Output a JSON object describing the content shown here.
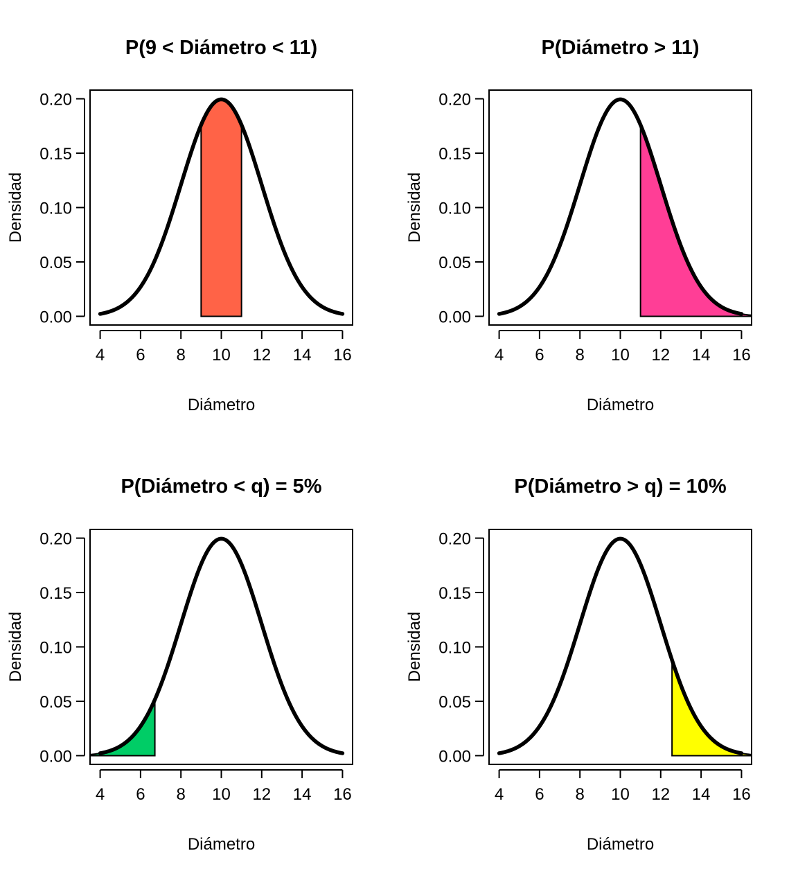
{
  "chart_data": [
    {
      "type": "area",
      "title": "P(9 < Diámetro < 11)",
      "xlabel": "Diámetro",
      "ylabel": "Densidad",
      "xlim": [
        3.5,
        16.5
      ],
      "ylim": [
        0,
        0.2
      ],
      "x_ticks": [
        4,
        6,
        8,
        10,
        12,
        14,
        16
      ],
      "y_ticks": [
        "0.00",
        "0.05",
        "0.10",
        "0.15",
        "0.20"
      ],
      "curve": {
        "distribution": "normal",
        "mean": 10,
        "sd": 2,
        "x_range": [
          4,
          16
        ]
      },
      "shaded": {
        "from": 9,
        "to": 11,
        "color": "#FF6347"
      },
      "grid": false
    },
    {
      "type": "area",
      "title": "P(Diámetro > 11)",
      "xlabel": "Diámetro",
      "ylabel": "Densidad",
      "xlim": [
        3.5,
        16.5
      ],
      "ylim": [
        0,
        0.2
      ],
      "x_ticks": [
        4,
        6,
        8,
        10,
        12,
        14,
        16
      ],
      "y_ticks": [
        "0.00",
        "0.05",
        "0.10",
        "0.15",
        "0.20"
      ],
      "curve": {
        "distribution": "normal",
        "mean": 10,
        "sd": 2,
        "x_range": [
          4,
          16
        ]
      },
      "shaded": {
        "from": 11,
        "to": 16.5,
        "color": "#FF3E96"
      },
      "grid": false
    },
    {
      "type": "area",
      "title": "P(Diámetro < q) = 5%",
      "xlabel": "Diámetro",
      "ylabel": "Densidad",
      "xlim": [
        3.5,
        16.5
      ],
      "ylim": [
        0,
        0.2
      ],
      "x_ticks": [
        4,
        6,
        8,
        10,
        12,
        14,
        16
      ],
      "y_ticks": [
        "0.00",
        "0.05",
        "0.10",
        "0.15",
        "0.20"
      ],
      "curve": {
        "distribution": "normal",
        "mean": 10,
        "sd": 2,
        "x_range": [
          4,
          16
        ]
      },
      "shaded": {
        "from": 3.5,
        "to": 6.71,
        "color": "#00CD66"
      },
      "grid": false
    },
    {
      "type": "area",
      "title": "P(Diámetro > q) = 10%",
      "xlabel": "Diámetro",
      "ylabel": "Densidad",
      "xlim": [
        3.5,
        16.5
      ],
      "ylim": [
        0,
        0.2
      ],
      "x_ticks": [
        4,
        6,
        8,
        10,
        12,
        14,
        16
      ],
      "y_ticks": [
        "0.00",
        "0.05",
        "0.10",
        "0.15",
        "0.20"
      ],
      "curve": {
        "distribution": "normal",
        "mean": 10,
        "sd": 2,
        "x_range": [
          4,
          16
        ]
      },
      "shaded": {
        "from": 12.56,
        "to": 16.5,
        "color": "#FFFF00"
      },
      "grid": false
    }
  ]
}
